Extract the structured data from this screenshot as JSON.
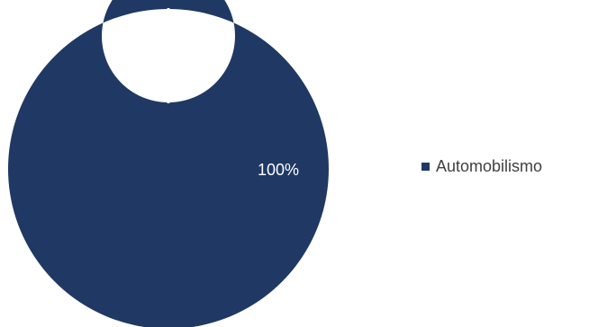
{
  "chart_data": {
    "type": "pie",
    "donut": true,
    "title": "",
    "categories": [
      "Automobilismo"
    ],
    "values": [
      100
    ],
    "data_labels": [
      "100%"
    ],
    "colors": [
      "#203864"
    ],
    "label_color": "#ffffff",
    "slice_border_color": "#ffffff",
    "legend": "right"
  }
}
